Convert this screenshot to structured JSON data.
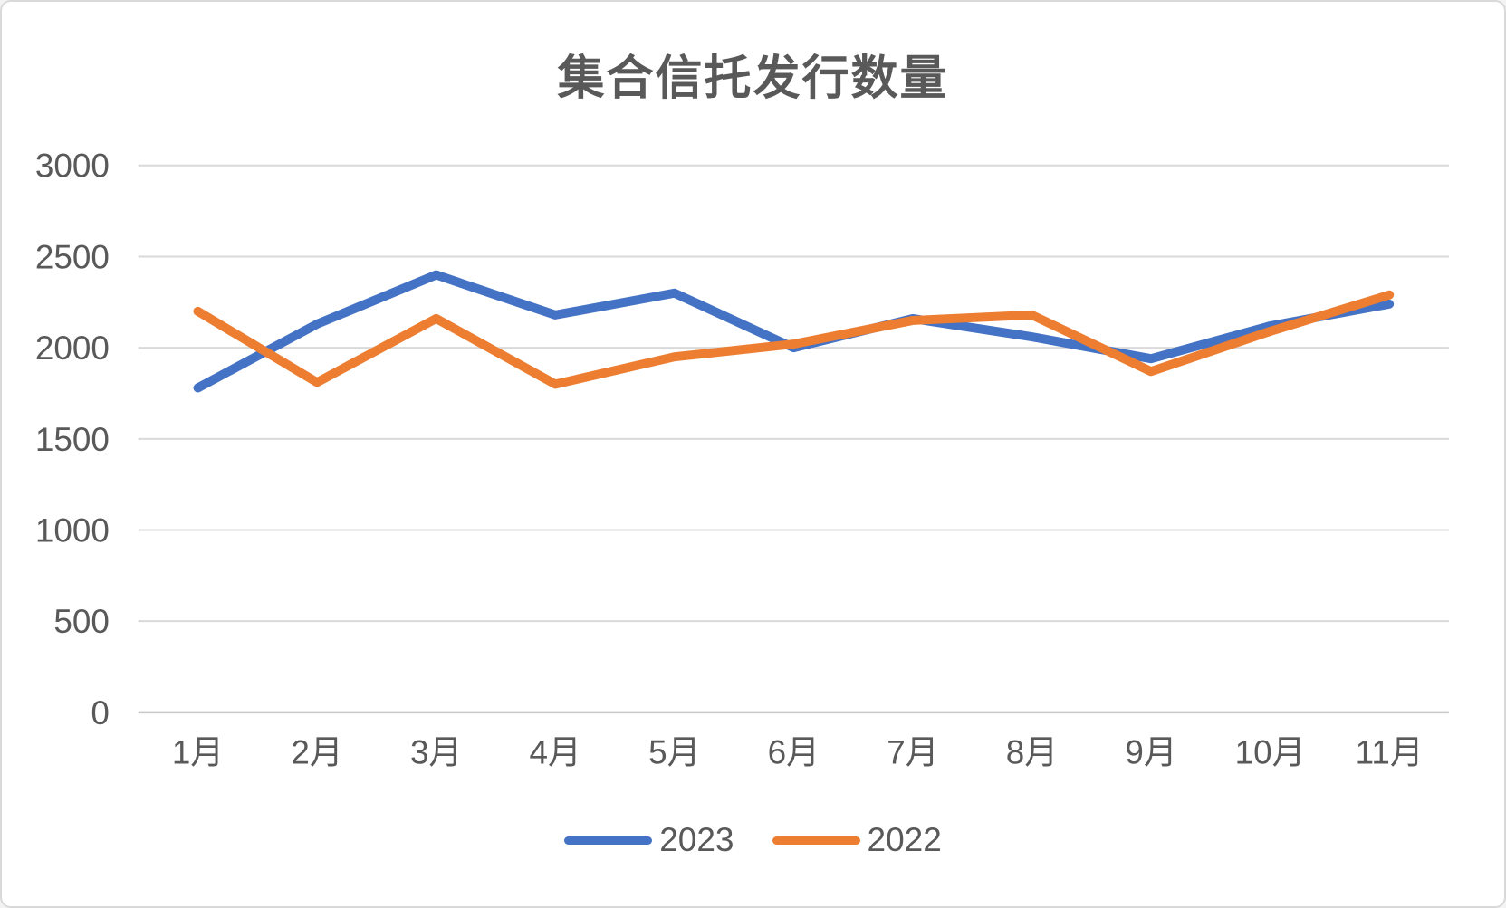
{
  "page": {
    "background": "#ffffff",
    "border_color": "#d9d9d9"
  },
  "chart_data": {
    "type": "line",
    "title": "集合信托发行数量",
    "categories": [
      "1月",
      "2月",
      "3月",
      "4月",
      "5月",
      "6月",
      "7月",
      "8月",
      "9月",
      "10月",
      "11月"
    ],
    "series": [
      {
        "name": "2023",
        "color": "#4472C4",
        "values": [
          1780,
          2130,
          2400,
          2180,
          2300,
          2000,
          2160,
          2060,
          1940,
          2120,
          2240
        ]
      },
      {
        "name": "2022",
        "color": "#ED7D31",
        "values": [
          2200,
          1810,
          2160,
          1800,
          1950,
          2020,
          2150,
          2180,
          1870,
          2090,
          2290
        ]
      }
    ],
    "xlabel": "",
    "ylabel": "",
    "ylim": [
      0,
      3000
    ],
    "yticks": [
      0,
      500,
      1000,
      1500,
      2000,
      2500,
      3000
    ],
    "grid": true,
    "grid_color": "#d9d9d9",
    "axis_line_color": "#c9c9c9",
    "text_color": "#595959",
    "legend_position": "bottom"
  }
}
